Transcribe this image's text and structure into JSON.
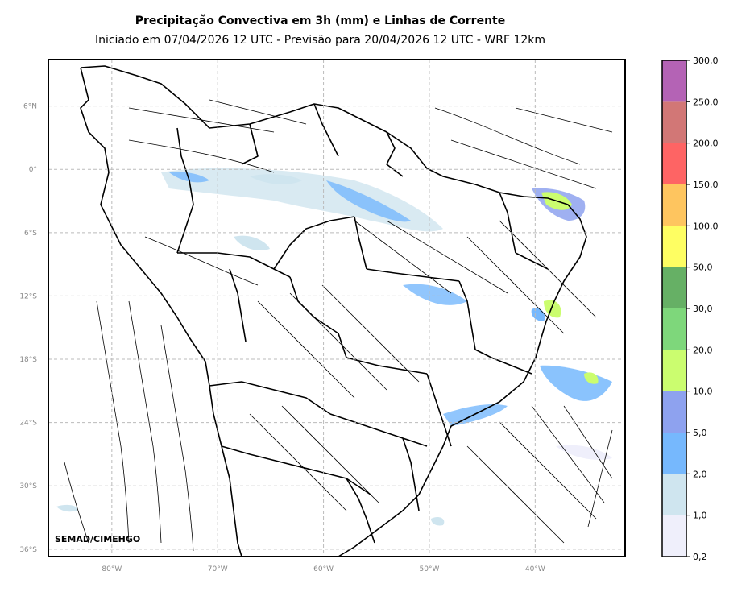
{
  "header": {
    "title": "Precipitação Convectiva em 3h (mm) e Linhas de Corrente",
    "subtitle": "Iniciado em 07/04/2026 12 UTC - Previsão para 20/04/2026 12 UTC - WRF 12km"
  },
  "map": {
    "lat_labels": [
      "6°N",
      "0°",
      "6°S",
      "12°S",
      "18°S",
      "24°S",
      "30°S",
      "36°S"
    ],
    "lon_labels": [
      "80°W",
      "70°W",
      "60°W",
      "50°W",
      "40°W"
    ],
    "lat_values": [
      6,
      0,
      -6,
      -12,
      -18,
      -24,
      -30,
      -36
    ],
    "lon_values": [
      -80,
      -70,
      -60,
      -50,
      -40
    ],
    "extent": {
      "lon": [
        -86,
        -31.5
      ],
      "lat": [
        -36.7,
        10.4
      ]
    },
    "gridlines": "dashed",
    "credit": "SEMAD/CIMEHGO"
  },
  "colorbar": {
    "labels": [
      "0,2",
      "1,0",
      "2,0",
      "5,0",
      "10,0",
      "20,0",
      "30,0",
      "50,0",
      "100,0",
      "150,0",
      "200,0",
      "250,0",
      "300,0"
    ],
    "colors": [
      "#efeffb",
      "#cfe5ef",
      "#76b8fd",
      "#8ea2ef",
      "#cbfd6f",
      "#7ed77b",
      "#66b065",
      "#fefe62",
      "#fec55f",
      "#fe6464",
      "#d27776",
      "#b463b5"
    ]
  }
}
